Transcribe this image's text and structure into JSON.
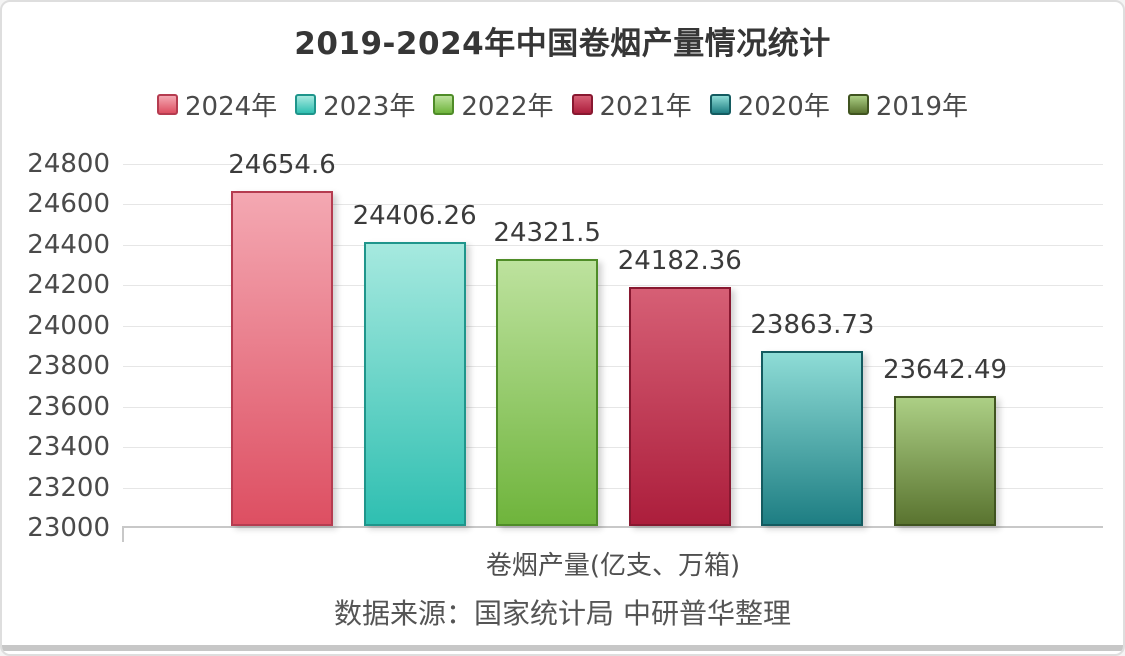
{
  "chart_data": {
    "type": "bar",
    "title": "2019-2024年中国卷烟产量情况统计",
    "categories": [
      "2024年",
      "2023年",
      "2022年",
      "2021年",
      "2020年",
      "2019年"
    ],
    "values": [
      24654.6,
      24406.26,
      24321.5,
      24182.36,
      23863.73,
      23642.49
    ],
    "value_labels": [
      "24654.6",
      "24406.26",
      "24321.5",
      "24182.36",
      "23863.73",
      "23642.49"
    ],
    "series_colors": [
      {
        "light": "#f4a8b2",
        "main": "#dd4f62",
        "border": "#b53c50"
      },
      {
        "light": "#a6e9df",
        "main": "#2fbfb1",
        "border": "#1f958b"
      },
      {
        "light": "#bde29e",
        "main": "#6fb43c",
        "border": "#4f8c28"
      },
      {
        "light": "#d65f75",
        "main": "#ac1e3c",
        "border": "#881830"
      },
      {
        "light": "#8edcd6",
        "main": "#1e7e83",
        "border": "#145b60"
      },
      {
        "light": "#accf85",
        "main": "#5a7430",
        "border": "#405420"
      }
    ],
    "xlabel": "卷烟产量(亿支、万箱)",
    "source_note": "数据来源：国家统计局 中研普华整理",
    "ylim": [
      23000,
      24800
    ],
    "ytick_step": 200,
    "yticks": [
      24800,
      24600,
      24400,
      24200,
      24000,
      23800,
      23600,
      23400,
      23200,
      23000
    ],
    "grid": true,
    "legend_position": "top",
    "background_color": "#ffffff",
    "grid_color": "#e6e6e6",
    "axis_color": "#c8c8c8"
  }
}
